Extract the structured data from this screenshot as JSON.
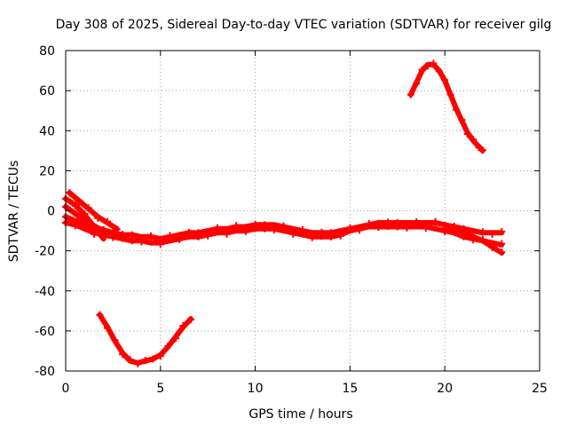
{
  "chart_data": {
    "type": "scatter",
    "title": "Day 308 of 2025, Sidereal Day-to-day VTEC variation (SDTVAR) for receiver gilg",
    "xlabel": "GPS time / hours",
    "ylabel": "SDTVAR / TECUs",
    "xlim": [
      0,
      25
    ],
    "ylim": [
      -80,
      80
    ],
    "xticks": [
      0,
      5,
      10,
      15,
      20,
      25
    ],
    "yticks": [
      -80,
      -60,
      -40,
      -20,
      0,
      20,
      40,
      60,
      80
    ],
    "grid": true,
    "color": "#ff0000",
    "series": [
      {
        "name": "main-band-upper",
        "x": [
          0,
          0.5,
          1,
          1.5,
          2,
          2.5,
          3,
          3.5,
          4,
          4.5,
          5,
          5.5,
          6,
          6.5,
          7,
          7.5,
          8,
          8.5,
          9,
          9.5,
          10,
          10.5,
          11,
          11.5,
          12,
          12.5,
          13,
          13.5,
          14,
          14.5,
          15,
          15.5,
          16,
          16.5,
          17,
          17.5,
          18,
          18.5,
          19,
          19.5,
          20,
          20.5,
          21,
          21.5,
          22,
          22.5,
          23
        ],
        "y": [
          -3,
          -5,
          -7,
          -9,
          -10,
          -11,
          -12,
          -12,
          -13,
          -13,
          -14,
          -13,
          -12,
          -11,
          -11,
          -10,
          -9,
          -9,
          -8,
          -8,
          -7,
          -7,
          -7,
          -8,
          -9,
          -10,
          -11,
          -11,
          -11,
          -10,
          -9,
          -8,
          -7,
          -6,
          -6,
          -6,
          -6,
          -6,
          -6,
          -6,
          -7,
          -8,
          -9,
          -10,
          -11,
          -11,
          -11
        ]
      },
      {
        "name": "main-band-lower",
        "x": [
          0,
          0.5,
          1,
          1.5,
          2,
          2.5,
          3,
          3.5,
          4,
          4.5,
          5,
          5.5,
          6,
          6.5,
          7,
          7.5,
          8,
          8.5,
          9,
          9.5,
          10,
          10.5,
          11,
          11.5,
          12,
          12.5,
          13,
          13.5,
          14,
          14.5,
          15,
          15.5,
          16,
          16.5,
          17,
          17.5,
          18,
          18.5,
          19,
          19.5,
          20,
          20.5,
          21,
          21.5,
          22,
          22.5,
          23
        ],
        "y": [
          -6,
          -7,
          -9,
          -11,
          -12,
          -13,
          -14,
          -15,
          -15,
          -16,
          -16,
          -15,
          -14,
          -13,
          -13,
          -12,
          -11,
          -11,
          -10,
          -10,
          -9,
          -9,
          -9,
          -10,
          -11,
          -12,
          -13,
          -13,
          -13,
          -12,
          -10,
          -9,
          -8,
          -8,
          -8,
          -8,
          -8,
          -8,
          -8,
          -9,
          -10,
          -11,
          -13,
          -14,
          -15,
          -16,
          -17
        ]
      },
      {
        "name": "early-track-a",
        "x": [
          0,
          0.5,
          1,
          1.5,
          2
        ],
        "y": [
          6,
          3,
          -2,
          -8,
          -14
        ]
      },
      {
        "name": "early-track-b",
        "x": [
          0.2,
          0.7,
          1.2,
          1.7,
          2.2,
          2.7
        ],
        "y": [
          9,
          5,
          1,
          -3,
          -6,
          -9
        ]
      },
      {
        "name": "early-track-c",
        "x": [
          0,
          0.6,
          1.2,
          1.8,
          2.5
        ],
        "y": [
          2,
          -2,
          -6,
          -9,
          -11
        ]
      },
      {
        "name": "morning-dip",
        "x": [
          1.8,
          2.2,
          2.6,
          3,
          3.4,
          3.8,
          4.2,
          4.6,
          5,
          5.4,
          5.8,
          6.2,
          6.6
        ],
        "y": [
          -52,
          -58,
          -65,
          -71,
          -75,
          -76,
          -75,
          -74,
          -72,
          -68,
          -63,
          -58,
          -54
        ]
      },
      {
        "name": "evening-peak",
        "x": [
          18.2,
          18.5,
          18.8,
          19.1,
          19.4,
          19.7,
          20,
          20.3,
          20.6,
          20.9,
          21.2,
          21.5,
          21.8,
          22
        ],
        "y": [
          58,
          64,
          70,
          73,
          73,
          70,
          65,
          58,
          51,
          45,
          39,
          35,
          32,
          30
        ]
      },
      {
        "name": "late-track-down",
        "x": [
          20,
          20.5,
          21,
          21.5,
          22,
          22.5,
          23
        ],
        "y": [
          -9,
          -10,
          -11,
          -13,
          -15,
          -18,
          -21
        ]
      }
    ]
  }
}
